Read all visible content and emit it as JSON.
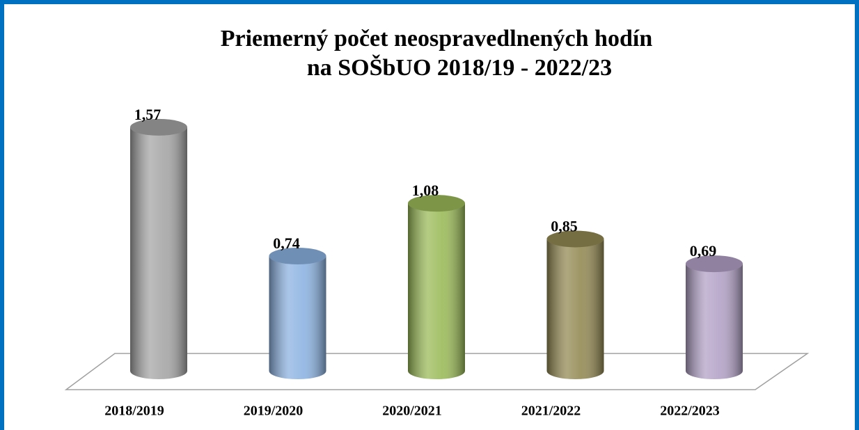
{
  "chart_data": {
    "type": "bar",
    "title": [
      "Priemerný počet neospravedlnených hodín",
      "na SOŠbUO 2018/19 - 2022/23"
    ],
    "categories": [
      "2018/2019",
      "2019/2020",
      "2020/2021",
      "2021/2022",
      "2022/2023"
    ],
    "values": [
      1.57,
      0.74,
      1.08,
      0.85,
      0.69
    ],
    "value_labels": [
      "1,57",
      "0,74",
      "1,08",
      "0,85",
      "0,69"
    ],
    "colors": [
      "#a6a6a6",
      "#8db3e2",
      "#9bbb59",
      "#948a54",
      "#b3a2c7"
    ]
  }
}
